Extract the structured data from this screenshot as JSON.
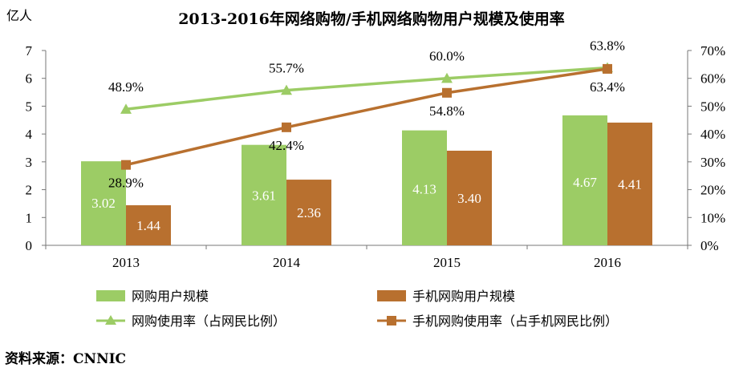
{
  "chart_data": {
    "type": "bar",
    "title": "2013-2016年网络购物/手机网络购物用户规模及使用率",
    "ylabel": "亿人",
    "categories": [
      "2013",
      "2014",
      "2015",
      "2016"
    ],
    "ylim": [
      0,
      7
    ],
    "y_ticks": [
      "0",
      "1",
      "2",
      "3",
      "4",
      "5",
      "6",
      "7"
    ],
    "y2lim": [
      0,
      70
    ],
    "y2_ticks": [
      "0%",
      "10%",
      "20%",
      "30%",
      "40%",
      "50%",
      "60%",
      "70%"
    ],
    "bar_series": [
      {
        "name": "网购用户规模",
        "color": "#9ccc65",
        "values": [
          3.02,
          3.61,
          4.13,
          4.67
        ],
        "labels": [
          "3.02",
          "3.61",
          "4.13",
          "4.67"
        ]
      },
      {
        "name": "手机网购用户规模",
        "color": "#b8702f",
        "values": [
          1.44,
          2.36,
          3.4,
          4.41
        ],
        "labels": [
          "1.44",
          "2.36",
          "3.40",
          "4.41"
        ]
      }
    ],
    "line_series": [
      {
        "name": "网购使用率（占网民比例）",
        "color": "#9ccc65",
        "marker": "triangle",
        "values": [
          48.9,
          55.7,
          60.0,
          63.8
        ],
        "labels": [
          "48.9%",
          "55.7%",
          "60.0%",
          "63.8%"
        ]
      },
      {
        "name": "手机网购使用率（占手机网民比例）",
        "color": "#b8702f",
        "marker": "square",
        "values": [
          28.9,
          42.4,
          54.8,
          63.4
        ],
        "labels": [
          "28.9%",
          "42.4%",
          "54.8%",
          "63.4%"
        ]
      }
    ],
    "legend_position": "bottom",
    "grid": false
  },
  "source": "资料来源：CNNIC"
}
